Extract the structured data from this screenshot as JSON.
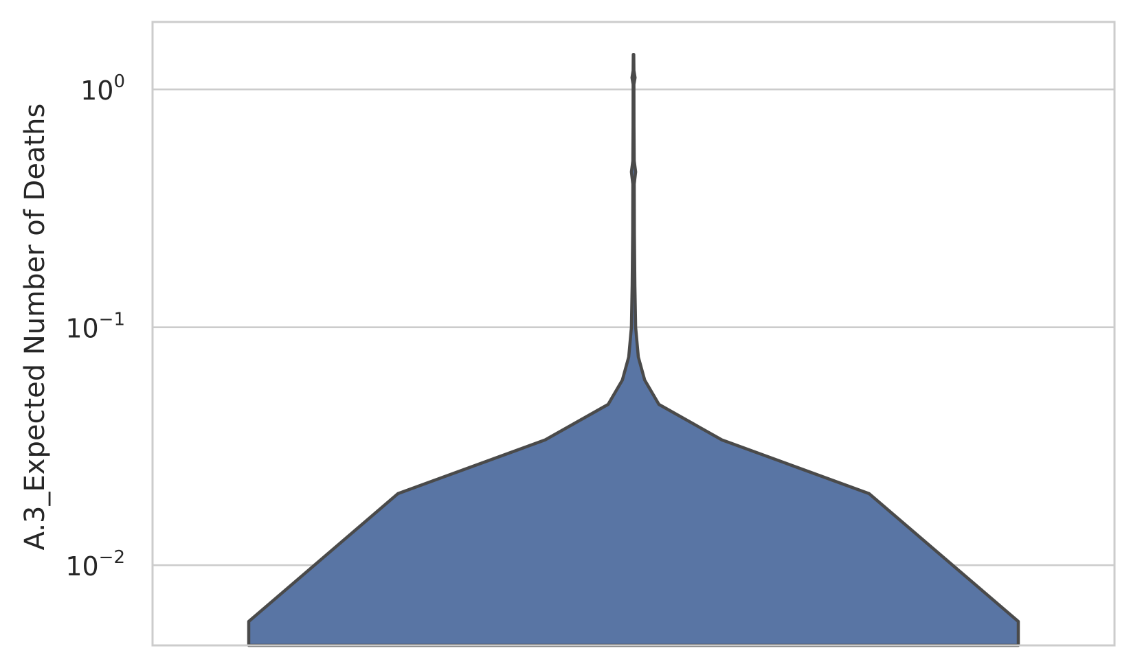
{
  "chart_data": {
    "type": "violin",
    "title": "",
    "xlabel": "",
    "ylabel": "A.3_Expected Number of Deaths",
    "yscale": "log",
    "ylim": [
      0.0046,
      1.92
    ],
    "yticks": [
      {
        "value": 0.01,
        "base": "10",
        "exp": "−2"
      },
      {
        "value": 0.1,
        "base": "10",
        "exp": "−1"
      },
      {
        "value": 1,
        "base": "10",
        "exp": "0"
      }
    ],
    "grid": "horizontal",
    "fill_color": "#5975a4",
    "stroke_color": "#4a4a4a",
    "grid_color": "#cccccc",
    "spine_color": "#cccccc",
    "violin_profile": [
      {
        "y": 0.0046,
        "half_width": 1.0
      },
      {
        "y": 0.0058,
        "half_width": 1.0
      },
      {
        "y": 0.02,
        "half_width": 0.612
      },
      {
        "y": 0.0336,
        "half_width": 0.23
      },
      {
        "y": 0.0474,
        "half_width": 0.066
      },
      {
        "y": 0.06,
        "half_width": 0.029
      },
      {
        "y": 0.075,
        "half_width": 0.0125
      },
      {
        "y": 0.1,
        "half_width": 0.0055
      },
      {
        "y": 0.15,
        "half_width": 0.0035
      },
      {
        "y": 0.25,
        "half_width": 0.0022
      },
      {
        "y": 0.4,
        "half_width": 0.0018
      },
      {
        "y": 0.45,
        "half_width": 0.0055
      },
      {
        "y": 0.5,
        "half_width": 0.0018
      },
      {
        "y": 0.7,
        "half_width": 0.0012
      },
      {
        "y": 1.05,
        "half_width": 0.001
      },
      {
        "y": 1.12,
        "half_width": 0.004
      },
      {
        "y": 1.2,
        "half_width": 0.001
      },
      {
        "y": 1.4,
        "half_width": 0.0006
      }
    ],
    "whisker_top": 1.4
  }
}
